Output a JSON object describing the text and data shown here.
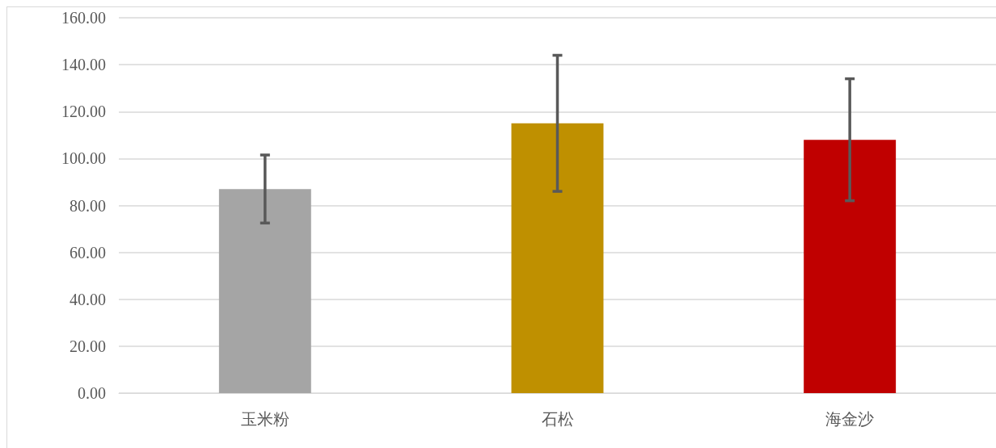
{
  "chart_data": {
    "type": "bar",
    "categories": [
      "玉米粉",
      "石松",
      "海金沙"
    ],
    "values": [
      87,
      115,
      108
    ],
    "colors": [
      "#a5a5a5",
      "#bf9000",
      "#c00000"
    ],
    "errors": [
      14.5,
      29,
      26
    ],
    "ylim": [
      0,
      160
    ],
    "yticks": [
      {
        "value": 0,
        "label": "0.00"
      },
      {
        "value": 20,
        "label": "20.00"
      },
      {
        "value": 40,
        "label": "40.00"
      },
      {
        "value": 60,
        "label": "60.00"
      },
      {
        "value": 80,
        "label": "80.00"
      },
      {
        "value": 100,
        "label": "100.00"
      },
      {
        "value": 120,
        "label": "120.00"
      },
      {
        "value": 140,
        "label": "140.00"
      },
      {
        "value": 160,
        "label": "160.00"
      }
    ],
    "grid": "y"
  }
}
